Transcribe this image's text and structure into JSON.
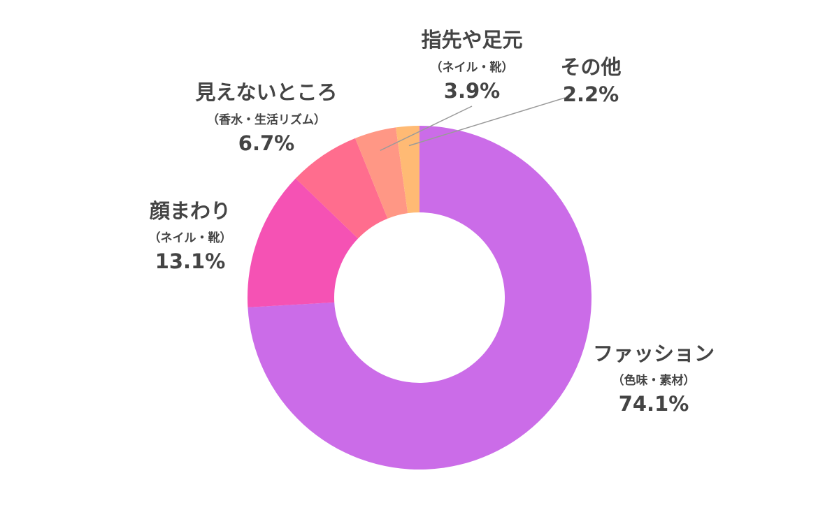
{
  "chart_data": {
    "type": "pie",
    "donut": true,
    "slices": [
      {
        "name": "ファッション",
        "sub": "（色味・素材）",
        "value": 74.1,
        "value_label": "74.1%",
        "color": "#cb6ce8"
      },
      {
        "name": "顔まわり",
        "sub": "（ネイル・靴）",
        "value": 13.1,
        "value_label": "13.1%",
        "color": "#f552b4"
      },
      {
        "name": "見えないところ",
        "sub": "（香水・生活リズム）",
        "value": 6.7,
        "value_label": "6.7%",
        "color": "#ff6d8e"
      },
      {
        "name": "指先や足元",
        "sub": "（ネイル・靴）",
        "value": 3.9,
        "value_label": "3.9%",
        "color": "#ff9785"
      },
      {
        "name": "その他",
        "sub": "",
        "value": 2.2,
        "value_label": "2.2%",
        "color": "#ffba74"
      }
    ],
    "legend": "none"
  }
}
